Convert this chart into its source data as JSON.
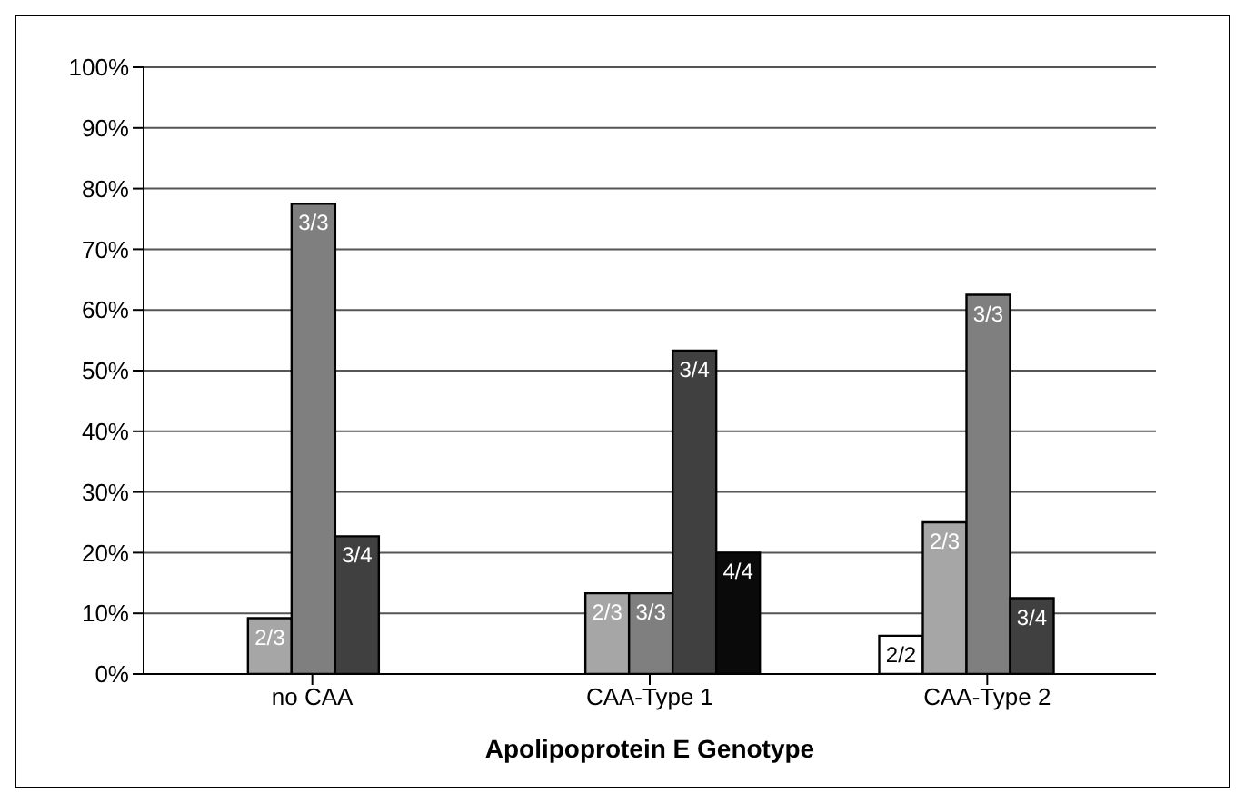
{
  "chart_data": {
    "type": "bar",
    "xlabel": "Apolipoprotein E Genotype",
    "categories": [
      "no CAA",
      "CAA-Type 1",
      "CAA-Type 2"
    ],
    "series": [
      {
        "name": "2/2",
        "color": "#ffffff",
        "values": [
          null,
          null,
          6.3
        ]
      },
      {
        "name": "2/3",
        "color": "#a6a6a6",
        "values": [
          9.2,
          13.3,
          25
        ]
      },
      {
        "name": "3/3",
        "color": "#7f7f7f",
        "values": [
          77.5,
          13.3,
          62.5
        ]
      },
      {
        "name": "3/4",
        "color": "#404040",
        "values": [
          22.7,
          53.3,
          12.5
        ]
      },
      {
        "name": "4/4",
        "color": "#0a0a0a",
        "values": [
          null,
          20,
          null
        ]
      }
    ],
    "ylim": [
      0,
      100
    ],
    "yticks": [
      {
        "value": 0,
        "label": "0%"
      },
      {
        "value": 10,
        "label": "10%"
      },
      {
        "value": 20,
        "label": "20%"
      },
      {
        "value": 30,
        "label": "30%"
      },
      {
        "value": 40,
        "label": "40%"
      },
      {
        "value": 50,
        "label": "50%"
      },
      {
        "value": 60,
        "label": "60%"
      },
      {
        "value": 70,
        "label": "70%"
      },
      {
        "value": 80,
        "label": "80%"
      },
      {
        "value": 90,
        "label": "90%"
      },
      {
        "value": 100,
        "label": "100%"
      }
    ],
    "grid": "y",
    "legend": false
  }
}
